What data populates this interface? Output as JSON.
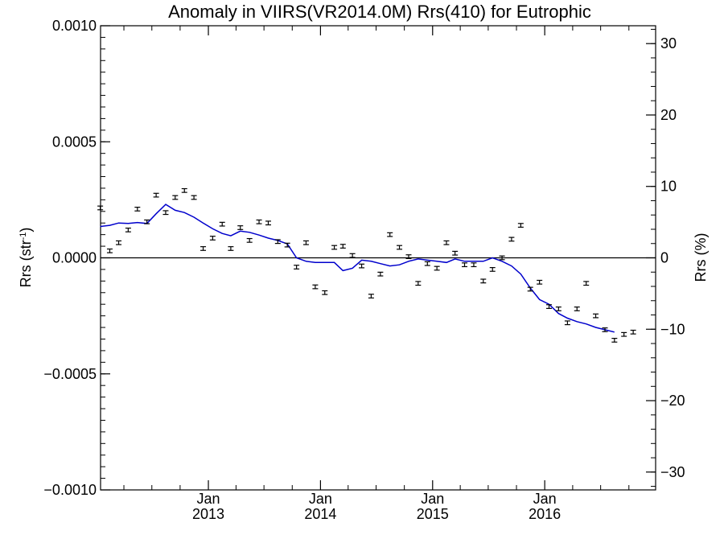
{
  "chart_data": {
    "type": "scatter",
    "title": "Anomaly in VIIRS(VR2014.0M) Rrs(410) for Eutrophic",
    "ylabel": "Rrs (str",
    "ylabel_sup": "-1",
    "ylabel_close": ")",
    "y2label": "Rrs (%)",
    "ylim": [
      -0.001,
      0.001
    ],
    "y2lim": [
      -32.5,
      32.5
    ],
    "xlim": [
      "2012-01-16",
      "2016-12-27"
    ],
    "yticks": [
      {
        "value": -0.001,
        "label": "−0.0010"
      },
      {
        "value": -0.0005,
        "label": "−0.0005"
      },
      {
        "value": 0.0,
        "label": "0.0000"
      },
      {
        "value": 0.0005,
        "label": "0.0005"
      },
      {
        "value": 0.001,
        "label": "0.0010"
      }
    ],
    "y2ticks": [
      {
        "value": -30,
        "label": "−30"
      },
      {
        "value": -20,
        "label": "−20"
      },
      {
        "value": -10,
        "label": "−10"
      },
      {
        "value": 0,
        "label": "0"
      },
      {
        "value": 10,
        "label": "10"
      },
      {
        "value": 20,
        "label": "20"
      },
      {
        "value": 30,
        "label": "30"
      }
    ],
    "xticks": [
      {
        "date": "2013-01-01",
        "month": "Jan",
        "year": "2013"
      },
      {
        "date": "2014-01-01",
        "month": "Jan",
        "year": "2014"
      },
      {
        "date": "2015-01-01",
        "month": "Jan",
        "year": "2015"
      },
      {
        "date": "2016-01-01",
        "month": "Jan",
        "year": "2016"
      }
    ],
    "zero_line": 0.0,
    "points": [
      {
        "date": "2012-01-15",
        "y": 0.000215
      },
      {
        "date": "2012-02-15",
        "y": 3e-05
      },
      {
        "date": "2012-03-15",
        "y": 6.5e-05
      },
      {
        "date": "2012-04-15",
        "y": 0.00012
      },
      {
        "date": "2012-05-15",
        "y": 0.00021
      },
      {
        "date": "2012-06-15",
        "y": 0.000155
      },
      {
        "date": "2012-07-15",
        "y": 0.00027
      },
      {
        "date": "2012-08-15",
        "y": 0.000195
      },
      {
        "date": "2012-09-15",
        "y": 0.00026
      },
      {
        "date": "2012-10-15",
        "y": 0.00029
      },
      {
        "date": "2012-11-15",
        "y": 0.00026
      },
      {
        "date": "2012-12-15",
        "y": 4e-05
      },
      {
        "date": "2013-01-15",
        "y": 8.5e-05
      },
      {
        "date": "2013-02-15",
        "y": 0.000145
      },
      {
        "date": "2013-03-15",
        "y": 4e-05
      },
      {
        "date": "2013-04-15",
        "y": 0.00013
      },
      {
        "date": "2013-05-15",
        "y": 7.5e-05
      },
      {
        "date": "2013-06-15",
        "y": 0.000155
      },
      {
        "date": "2013-07-15",
        "y": 0.00015
      },
      {
        "date": "2013-08-15",
        "y": 7e-05
      },
      {
        "date": "2013-09-15",
        "y": 5.5e-05
      },
      {
        "date": "2013-10-15",
        "y": -4e-05
      },
      {
        "date": "2013-11-15",
        "y": 6.5e-05
      },
      {
        "date": "2013-12-15",
        "y": -0.000125
      },
      {
        "date": "2014-01-15",
        "y": -0.00015
      },
      {
        "date": "2014-02-15",
        "y": 4.5e-05
      },
      {
        "date": "2014-03-15",
        "y": 5e-05
      },
      {
        "date": "2014-04-15",
        "y": 1e-05
      },
      {
        "date": "2014-05-15",
        "y": -3.5e-05
      },
      {
        "date": "2014-06-15",
        "y": -0.000165
      },
      {
        "date": "2014-07-15",
        "y": -7e-05
      },
      {
        "date": "2014-08-15",
        "y": 0.0001
      },
      {
        "date": "2014-09-15",
        "y": 4.5e-05
      },
      {
        "date": "2014-10-15",
        "y": 5e-06
      },
      {
        "date": "2014-11-15",
        "y": -0.00011
      },
      {
        "date": "2014-12-15",
        "y": -2.5e-05
      },
      {
        "date": "2015-01-15",
        "y": -4.5e-05
      },
      {
        "date": "2015-02-15",
        "y": 6.5e-05
      },
      {
        "date": "2015-03-15",
        "y": 2e-05
      },
      {
        "date": "2015-04-15",
        "y": -3e-05
      },
      {
        "date": "2015-05-15",
        "y": -3e-05
      },
      {
        "date": "2015-06-15",
        "y": -0.0001
      },
      {
        "date": "2015-07-15",
        "y": -5e-05
      },
      {
        "date": "2015-08-15",
        "y": 0.0
      },
      {
        "date": "2015-09-15",
        "y": 8e-05
      },
      {
        "date": "2015-10-15",
        "y": 0.00014
      },
      {
        "date": "2015-11-15",
        "y": -0.000135
      },
      {
        "date": "2015-12-15",
        "y": -0.000105
      },
      {
        "date": "2016-01-15",
        "y": -0.00021
      },
      {
        "date": "2016-02-15",
        "y": -0.00022
      },
      {
        "date": "2016-03-15",
        "y": -0.00028
      },
      {
        "date": "2016-04-15",
        "y": -0.00022
      },
      {
        "date": "2016-05-15",
        "y": -0.00011
      },
      {
        "date": "2016-06-15",
        "y": -0.00025
      },
      {
        "date": "2016-07-15",
        "y": -0.00031
      },
      {
        "date": "2016-08-15",
        "y": -0.000355
      },
      {
        "date": "2016-09-15",
        "y": -0.00033
      },
      {
        "date": "2016-10-15",
        "y": -0.00032
      }
    ],
    "trend_line": {
      "color": "#0000cc",
      "points": [
        {
          "date": "2012-01-15",
          "y": 0.000135
        },
        {
          "date": "2012-02-15",
          "y": 0.00014
        },
        {
          "date": "2012-03-15",
          "y": 0.00015
        },
        {
          "date": "2012-04-15",
          "y": 0.000148
        },
        {
          "date": "2012-05-15",
          "y": 0.000152
        },
        {
          "date": "2012-06-15",
          "y": 0.000148
        },
        {
          "date": "2012-07-15",
          "y": 0.00019
        },
        {
          "date": "2012-08-15",
          "y": 0.00023
        },
        {
          "date": "2012-09-15",
          "y": 0.000205
        },
        {
          "date": "2012-10-15",
          "y": 0.000195
        },
        {
          "date": "2012-11-15",
          "y": 0.000175
        },
        {
          "date": "2012-12-15",
          "y": 0.00015
        },
        {
          "date": "2013-01-15",
          "y": 0.000125
        },
        {
          "date": "2013-02-15",
          "y": 0.000105
        },
        {
          "date": "2013-03-15",
          "y": 9.5e-05
        },
        {
          "date": "2013-04-15",
          "y": 0.000115
        },
        {
          "date": "2013-05-15",
          "y": 0.00011
        },
        {
          "date": "2013-06-15",
          "y": 9.8e-05
        },
        {
          "date": "2013-07-15",
          "y": 8.5e-05
        },
        {
          "date": "2013-08-15",
          "y": 7.5e-05
        },
        {
          "date": "2013-09-15",
          "y": 6e-05
        },
        {
          "date": "2013-10-15",
          "y": 0.0
        },
        {
          "date": "2013-11-15",
          "y": -1.5e-05
        },
        {
          "date": "2013-12-15",
          "y": -2e-05
        },
        {
          "date": "2014-01-15",
          "y": -2e-05
        },
        {
          "date": "2014-02-15",
          "y": -2e-05
        },
        {
          "date": "2014-03-15",
          "y": -5.5e-05
        },
        {
          "date": "2014-04-15",
          "y": -4.5e-05
        },
        {
          "date": "2014-05-15",
          "y": -1e-05
        },
        {
          "date": "2014-06-15",
          "y": -1.5e-05
        },
        {
          "date": "2014-07-15",
          "y": -2.5e-05
        },
        {
          "date": "2014-08-15",
          "y": -3.5e-05
        },
        {
          "date": "2014-09-15",
          "y": -3e-05
        },
        {
          "date": "2014-10-15",
          "y": -1.5e-05
        },
        {
          "date": "2014-11-15",
          "y": -5e-06
        },
        {
          "date": "2014-12-15",
          "y": -1e-05
        },
        {
          "date": "2015-01-15",
          "y": -1.5e-05
        },
        {
          "date": "2015-02-15",
          "y": -2e-05
        },
        {
          "date": "2015-03-15",
          "y": -5e-06
        },
        {
          "date": "2015-04-15",
          "y": -1.5e-05
        },
        {
          "date": "2015-05-15",
          "y": -1.5e-05
        },
        {
          "date": "2015-06-15",
          "y": -1.5e-05
        },
        {
          "date": "2015-07-15",
          "y": 0.0
        },
        {
          "date": "2015-08-15",
          "y": -1.5e-05
        },
        {
          "date": "2015-09-15",
          "y": -3.5e-05
        },
        {
          "date": "2015-10-15",
          "y": -7e-05
        },
        {
          "date": "2015-11-15",
          "y": -0.00013
        },
        {
          "date": "2015-12-15",
          "y": -0.00018
        },
        {
          "date": "2016-01-15",
          "y": -0.0002
        },
        {
          "date": "2016-02-15",
          "y": -0.00024
        },
        {
          "date": "2016-03-15",
          "y": -0.00026
        },
        {
          "date": "2016-04-15",
          "y": -0.000275
        },
        {
          "date": "2016-05-15",
          "y": -0.000285
        },
        {
          "date": "2016-06-15",
          "y": -0.0003
        },
        {
          "date": "2016-07-15",
          "y": -0.00031
        },
        {
          "date": "2016-08-15",
          "y": -0.00032
        }
      ]
    },
    "grid": false,
    "legend": "none",
    "error_bar": 8e-06
  }
}
